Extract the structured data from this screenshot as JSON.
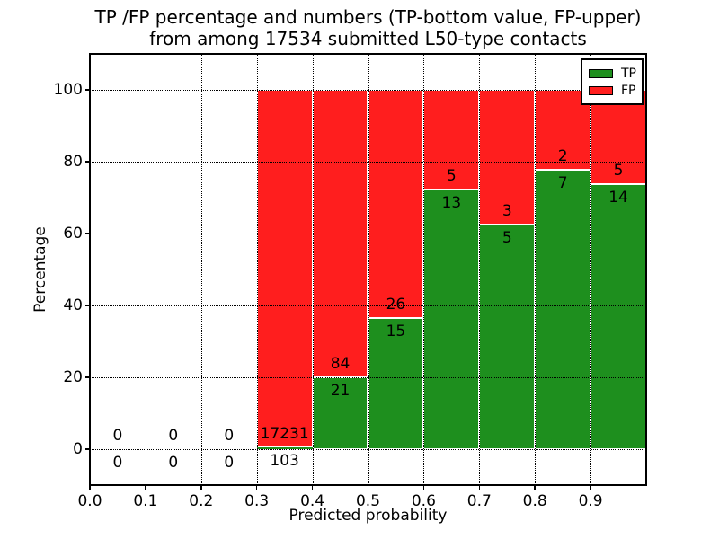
{
  "figure": {
    "background": "#ffffff",
    "title_line1": "TP /FP percentage and numbers (TP-bottom value, FP-upper)",
    "title_line2": "from among 17534 submitted L50-type contacts"
  },
  "chart_data": {
    "type": "bar",
    "variant": "stacked-percentage",
    "title": "TP /FP percentage and numbers (TP-bottom value, FP-upper)\nfrom among 17534 submitted L50-type contacts",
    "total_submitted": 17534,
    "xlabel": "Predicted probability",
    "ylabel": "Percentage",
    "xlim": [
      0.0,
      1.0
    ],
    "ylim": [
      -10,
      110
    ],
    "x_ticks": [
      0.0,
      0.1,
      0.2,
      0.3,
      0.4,
      0.5,
      0.6,
      0.7,
      0.8,
      0.9
    ],
    "x_tick_labels": [
      "0.0",
      "0.1",
      "0.2",
      "0.3",
      "0.4",
      "0.5",
      "0.6",
      "0.7",
      "0.8",
      "0.9"
    ],
    "y_ticks": [
      0,
      20,
      40,
      60,
      80,
      100
    ],
    "y_tick_labels": [
      "0",
      "20",
      "40",
      "60",
      "80",
      "100"
    ],
    "grid": "dotted-both-axes",
    "bar_edge_color": "#ffffff",
    "colors": {
      "tp": "#1e8f1e",
      "fp": "#ff1e1e"
    },
    "legend": {
      "position": "upper-right",
      "entries": [
        {
          "label": "TP",
          "color": "#1e8f1e"
        },
        {
          "label": "FP",
          "color": "#ff1e1e"
        }
      ]
    },
    "bins": [
      {
        "range": [
          0.0,
          0.1
        ],
        "tp": 0,
        "fp": 0
      },
      {
        "range": [
          0.1,
          0.2
        ],
        "tp": 0,
        "fp": 0
      },
      {
        "range": [
          0.2,
          0.3
        ],
        "tp": 0,
        "fp": 0
      },
      {
        "range": [
          0.3,
          0.4
        ],
        "tp": 103,
        "fp": 17231
      },
      {
        "range": [
          0.4,
          0.5
        ],
        "tp": 21,
        "fp": 84
      },
      {
        "range": [
          0.5,
          0.6
        ],
        "tp": 15,
        "fp": 26
      },
      {
        "range": [
          0.6,
          0.7
        ],
        "tp": 13,
        "fp": 5
      },
      {
        "range": [
          0.7,
          0.8
        ],
        "tp": 5,
        "fp": 3
      },
      {
        "range": [
          0.8,
          0.9
        ],
        "tp": 7,
        "fp": 2
      },
      {
        "range": [
          0.9,
          1.0
        ],
        "tp": 14,
        "fp": 5
      }
    ]
  }
}
